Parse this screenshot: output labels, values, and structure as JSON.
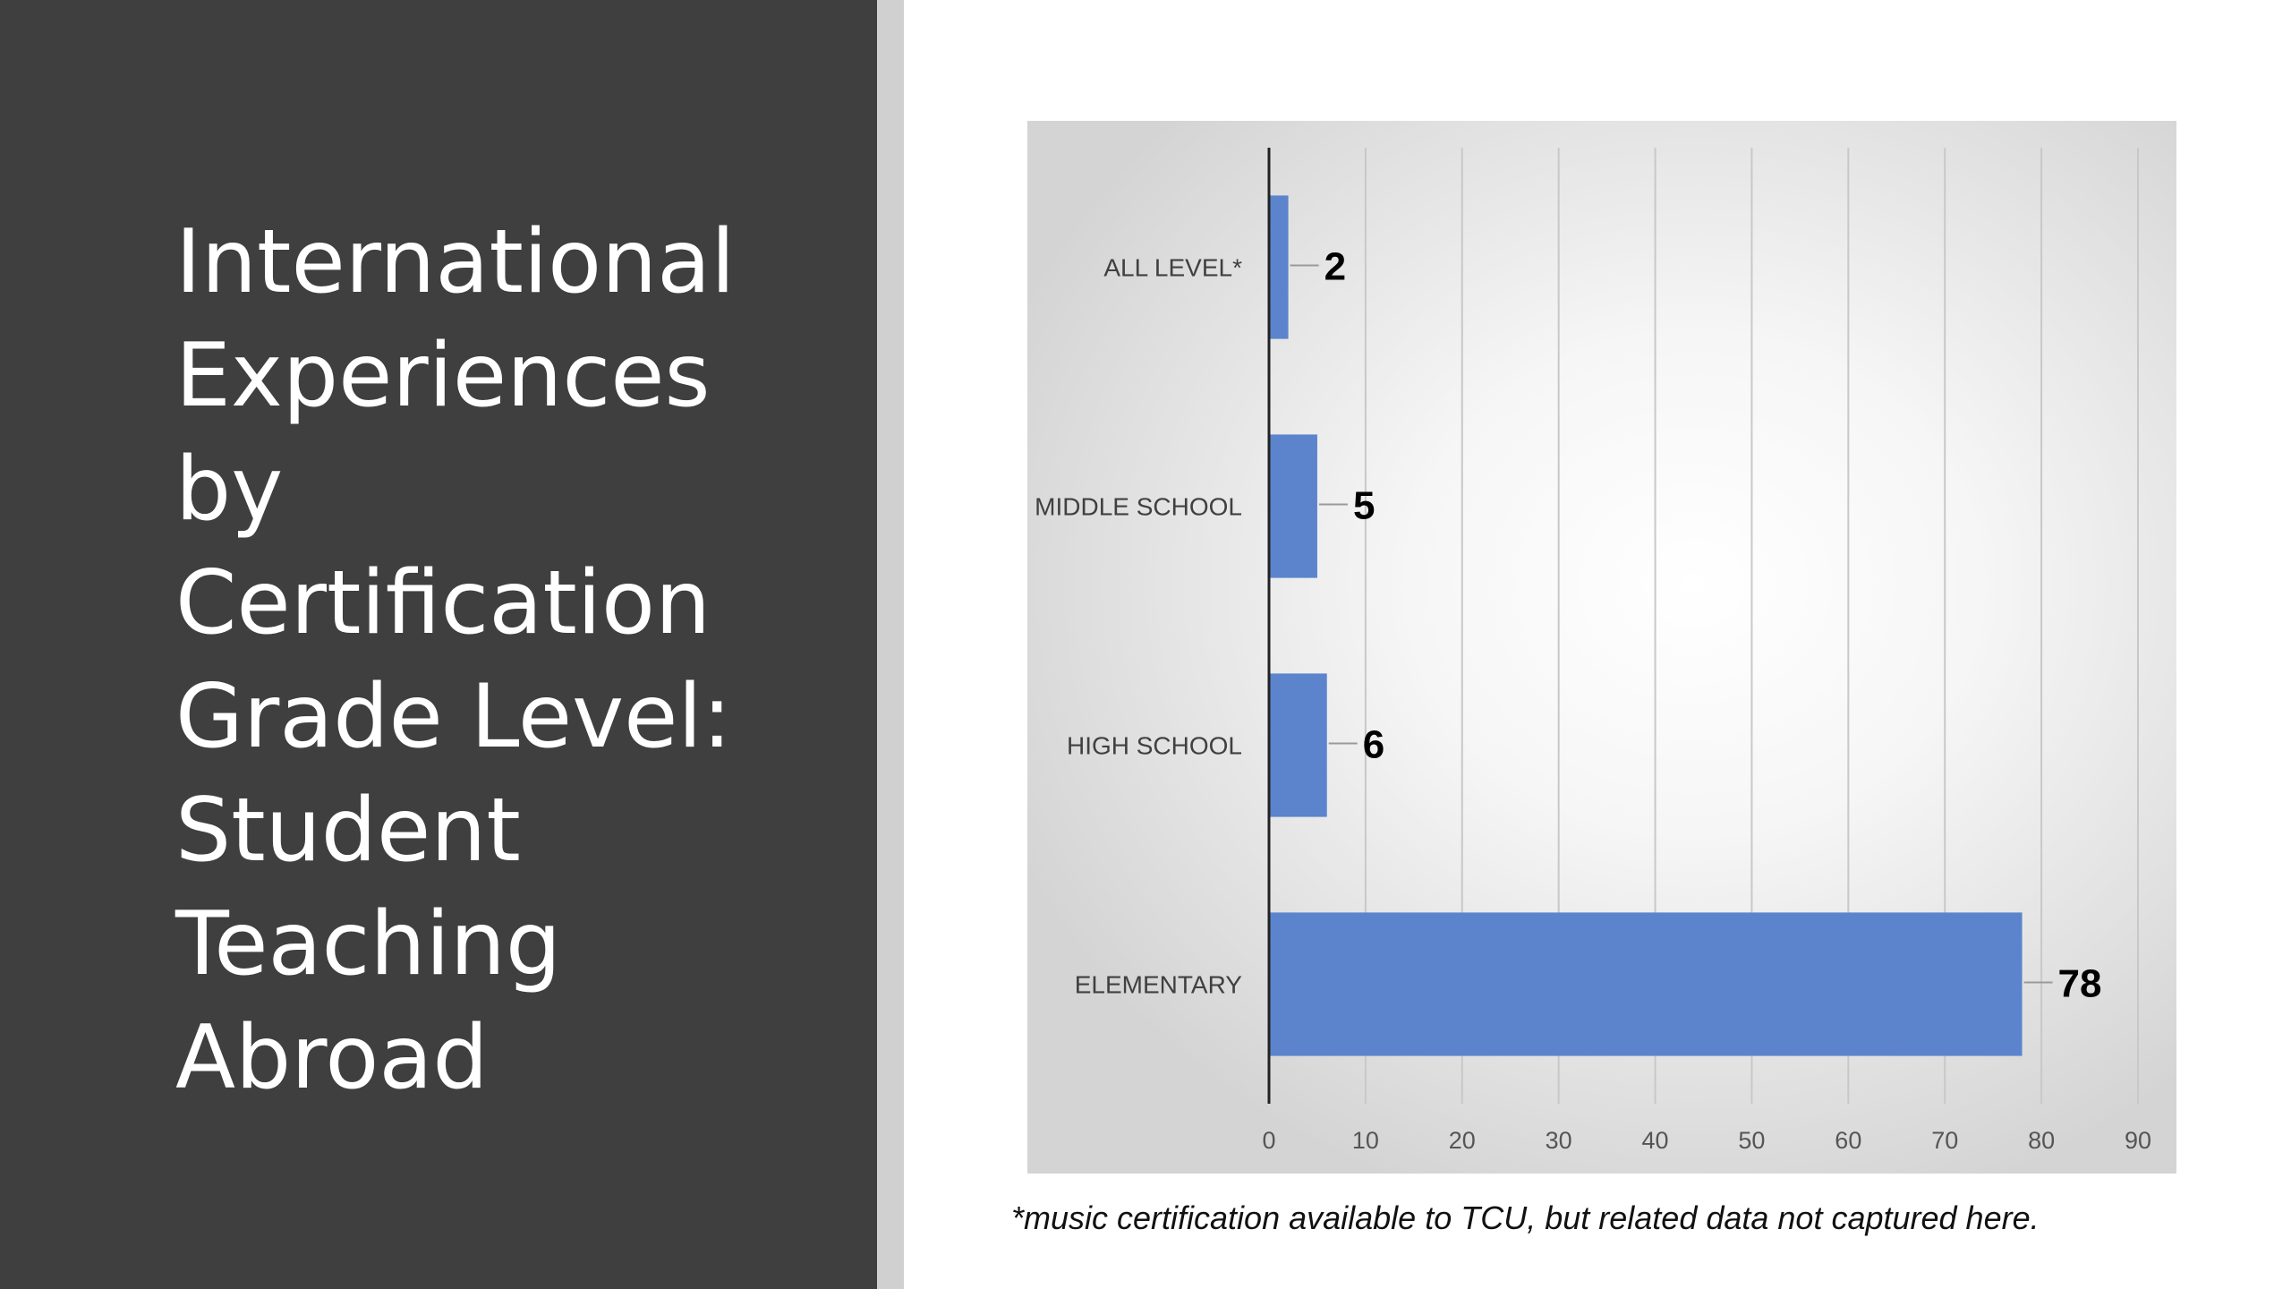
{
  "slide": {
    "title_lines": [
      "International",
      "Experiences",
      "by",
      "Certification",
      "Grade Level:",
      "Student",
      "Teaching",
      "Abroad"
    ],
    "footnote": "*music certification available to TCU, but related data not captured here."
  },
  "colors": {
    "left_panel": "#3f3f3f",
    "divider": "#d0d0d0",
    "bar": "#5b84cc",
    "title_text": "#ffffff"
  },
  "chart_data": {
    "type": "bar",
    "orientation": "horizontal",
    "categories": [
      "ALL LEVEL*",
      "MIDDLE SCHOOL",
      "HIGH SCHOOL",
      "ELEMENTARY"
    ],
    "values": [
      2,
      5,
      6,
      78
    ],
    "data_labels": [
      "2",
      "5",
      "6",
      "78"
    ],
    "xlim": [
      0,
      90
    ],
    "x_ticks": [
      0,
      10,
      20,
      30,
      40,
      50,
      60,
      70,
      80,
      90
    ],
    "grid": "vertical",
    "legend": "none"
  }
}
